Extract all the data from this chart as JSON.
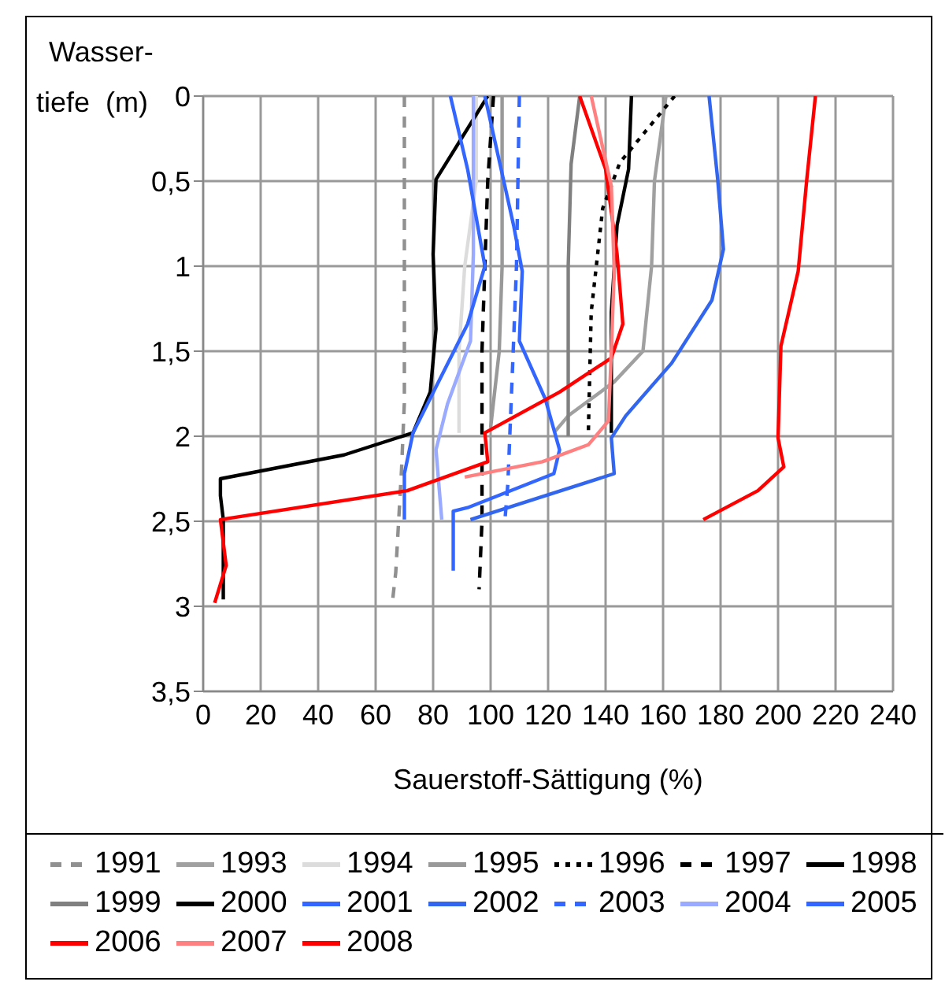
{
  "chart_data": {
    "type": "line",
    "xlabel": "Sauerstoff-Sättigung (%)",
    "ylabel": "Wasser-\ntiefe  (m)",
    "xlim": [
      0,
      240
    ],
    "xticks": [
      0,
      20,
      40,
      60,
      80,
      100,
      120,
      140,
      160,
      180,
      200,
      220,
      240
    ],
    "ylim": [
      3.5,
      0
    ],
    "yticks": [
      0,
      {
        "value": 0.5,
        "label": "0,5"
      },
      1,
      {
        "value": 1.5,
        "label": "1,5"
      },
      2,
      {
        "value": 2.5,
        "label": "2,5"
      },
      3,
      {
        "value": 3.5,
        "label": "3,5"
      }
    ],
    "grid": true,
    "legend": "bottom",
    "marker": "none",
    "series": [
      {
        "name": "1991",
        "color": "#909090",
        "line_style": "dashed",
        "x": [
          70,
          70,
          70,
          69,
          68,
          67,
          66
        ],
        "values": [
          0,
          1,
          1.8,
          2.2,
          2.5,
          2.8,
          2.95
        ]
      },
      {
        "name": "1993",
        "color": "#a0a0a0",
        "x": [
          161,
          157,
          156,
          153,
          143,
          127,
          122
        ],
        "values": [
          0,
          0.5,
          1,
          1.5,
          1.68,
          1.88,
          1.98
        ]
      },
      {
        "name": "1994",
        "color": "#dcdcdc",
        "x": [
          95,
          95,
          91,
          89,
          89
        ],
        "values": [
          0,
          0.5,
          1,
          1.5,
          1.98
        ]
      },
      {
        "name": "1995",
        "color": "#999999",
        "x": [
          104,
          104,
          104,
          103,
          101,
          100
        ],
        "values": [
          0,
          0.5,
          1,
          1.5,
          1.8,
          1.95
        ]
      },
      {
        "name": "1996",
        "color": "#000000",
        "line_style": "dotted",
        "x": [
          164,
          145,
          139,
          135,
          134
        ],
        "values": [
          0,
          0.39,
          0.66,
          1.27,
          1.98
        ]
      },
      {
        "name": "1997",
        "color": "#000000",
        "line_style": "dashed",
        "x": [
          101,
          99,
          98,
          97,
          97,
          97,
          96
        ],
        "values": [
          0,
          0.5,
          1,
          1.5,
          2,
          2.5,
          2.9
        ]
      },
      {
        "name": "1998",
        "color": "#000000",
        "x": [
          149,
          148,
          144,
          142,
          142
        ],
        "values": [
          0,
          0.43,
          0.76,
          1.27,
          1.98
        ]
      },
      {
        "name": "1999",
        "color": "#808080",
        "x": [
          131,
          128,
          127,
          127,
          127
        ],
        "values": [
          0,
          0.4,
          1,
          1.5,
          2
        ]
      },
      {
        "name": "2000",
        "color": "#000000",
        "x": [
          99,
          81,
          80,
          81,
          79,
          73,
          49,
          6,
          6,
          7,
          7
        ],
        "values": [
          0,
          0.49,
          0.93,
          1.37,
          1.74,
          1.98,
          2.11,
          2.25,
          2.35,
          2.49,
          2.96
        ]
      },
      {
        "name": "2001",
        "color": "#3366ff",
        "x": [
          98,
          108,
          111,
          110,
          119,
          124,
          122,
          92,
          87,
          87
        ],
        "values": [
          0,
          0.76,
          1.03,
          1.44,
          1.78,
          2.08,
          2.22,
          2.42,
          2.44,
          2.79
        ]
      },
      {
        "name": "2002",
        "color": "#3366ee",
        "x": [
          176,
          179,
          181,
          177,
          163,
          147,
          142,
          143,
          93
        ],
        "values": [
          0,
          0.49,
          0.9,
          1.2,
          1.57,
          1.88,
          2.01,
          2.22,
          2.49
        ]
      },
      {
        "name": "2003",
        "color": "#3366ff",
        "line_style": "dashed",
        "x": [
          110,
          109,
          108,
          106,
          105
        ],
        "values": [
          0,
          1,
          1.44,
          2.28,
          2.49
        ]
      },
      {
        "name": "2004",
        "color": "#99aaff",
        "x": [
          94,
          94,
          93,
          85,
          81,
          83
        ],
        "values": [
          0,
          0.93,
          1.44,
          1.81,
          2.08,
          2.49
        ]
      },
      {
        "name": "2005",
        "color": "#3366ff",
        "x": [
          86,
          92,
          98,
          92,
          81,
          73,
          70,
          70
        ],
        "values": [
          0,
          0.43,
          1,
          1.34,
          1.71,
          1.98,
          2.22,
          2.49
        ]
      },
      {
        "name": "2006",
        "color": "#ff0000",
        "x": [
          131,
          140,
          144,
          146,
          142,
          124,
          98,
          99,
          71,
          6,
          8,
          4
        ],
        "values": [
          0,
          0.43,
          0.93,
          1.34,
          1.54,
          1.74,
          1.98,
          2.15,
          2.32,
          2.49,
          2.76,
          2.98
        ]
      },
      {
        "name": "2007",
        "color": "#ff8080",
        "x": [
          135,
          142,
          143,
          142,
          141,
          134,
          118,
          91
        ],
        "values": [
          0,
          0.53,
          1.03,
          1.5,
          1.91,
          2.05,
          2.15,
          2.24
        ]
      },
      {
        "name": "2008",
        "color": "#ff0000",
        "x": [
          213,
          210,
          207,
          201,
          200,
          202,
          193,
          174
        ],
        "values": [
          0,
          0.49,
          1.03,
          1.47,
          2.01,
          2.18,
          2.32,
          2.49
        ]
      }
    ]
  }
}
